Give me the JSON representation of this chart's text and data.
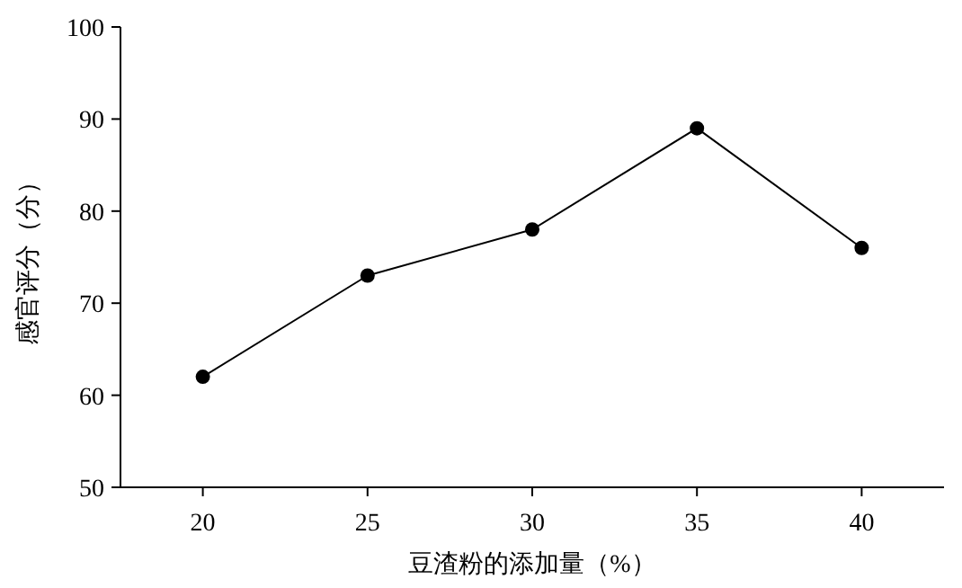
{
  "chart_data": {
    "type": "line",
    "xlabel": "豆渣粉的添加量（%）",
    "ylabel": "感官评分（分）",
    "categories": [
      "20",
      "25",
      "30",
      "35",
      "40"
    ],
    "series": [
      {
        "color": "#000000",
        "values": [
          62,
          73,
          78,
          89,
          76
        ]
      }
    ],
    "ylim": [
      50,
      100
    ],
    "yticks": [
      50,
      60,
      70,
      80,
      90,
      100
    ],
    "marker": "circle",
    "line_style": "solid",
    "grid": false
  }
}
